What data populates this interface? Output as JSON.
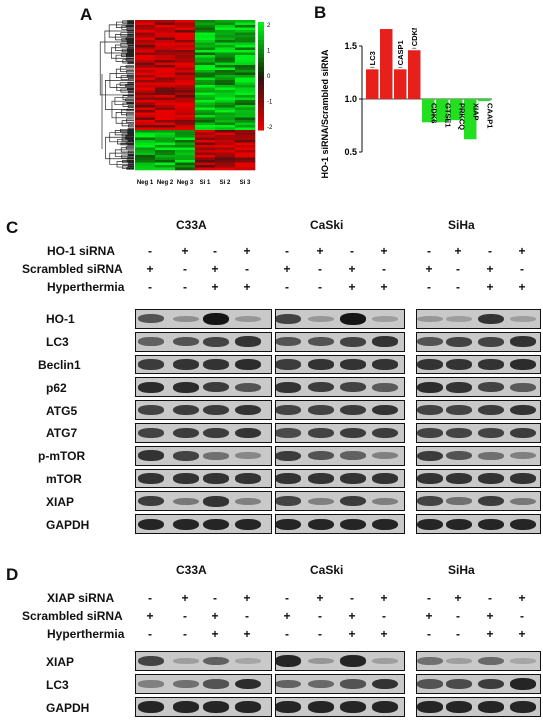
{
  "panels": {
    "a": "A",
    "b": "B",
    "c": "C",
    "d": "D"
  },
  "heatmap": {
    "columns": [
      "Neg 1",
      "Neg 2",
      "Neg 3",
      "Si 1",
      "Si 2",
      "Si 3"
    ],
    "scale_ticks": [
      "2",
      "1",
      "0",
      "-1",
      "-2"
    ],
    "colors": {
      "high": "#19d31d",
      "mid": "#000000",
      "low": "#e01d1d"
    }
  },
  "chart_data": {
    "type": "bar",
    "ylabel": "HO-1 siRNA/Scrambled siRNA",
    "ylim": [
      0.5,
      1.5
    ],
    "yticks": [
      "1.5",
      "1.0",
      "0.5"
    ],
    "baseline": 1.0,
    "categories": [
      "LC3",
      "PDCD6",
      "CASP1",
      "CDKN1A",
      "CDK6",
      "GTSE1",
      "PRKCQ",
      "XIAP",
      "CAAP1"
    ],
    "values": [
      1.28,
      1.66,
      1.28,
      1.46,
      0.78,
      0.78,
      0.8,
      0.62,
      0.98
    ],
    "colors": {
      "up": "#e8201c",
      "down": "#22e01f"
    }
  },
  "panel_c": {
    "cell_lines": [
      "C33A",
      "CaSki",
      "SiHa"
    ],
    "conditions": [
      {
        "label": "HO-1 siRNA",
        "marks": [
          "-",
          "+",
          "-",
          "+"
        ]
      },
      {
        "label": "Scrambled siRNA",
        "marks": [
          "+",
          "-",
          "+",
          "-"
        ]
      },
      {
        "label": "Hyperthermia",
        "marks": [
          "-",
          "-",
          "+",
          "+"
        ]
      }
    ],
    "proteins": [
      "HO-1",
      "LC3",
      "Beclin1",
      "p62",
      "ATG5",
      "ATG7",
      "p-mTOR",
      "mTOR",
      "XIAP",
      "GAPDH"
    ]
  },
  "panel_d": {
    "cell_lines": [
      "C33A",
      "CaSki",
      "SiHa"
    ],
    "conditions": [
      {
        "label": "XIAP siRNA",
        "marks": [
          "-",
          "+",
          "-",
          "+"
        ]
      },
      {
        "label": "Scrambled siRNA",
        "marks": [
          "+",
          "-",
          "+",
          "-"
        ]
      },
      {
        "label": "Hyperthermia",
        "marks": [
          "-",
          "-",
          "+",
          "+"
        ]
      }
    ],
    "proteins": [
      "XIAP",
      "LC3",
      "GAPDH"
    ]
  }
}
